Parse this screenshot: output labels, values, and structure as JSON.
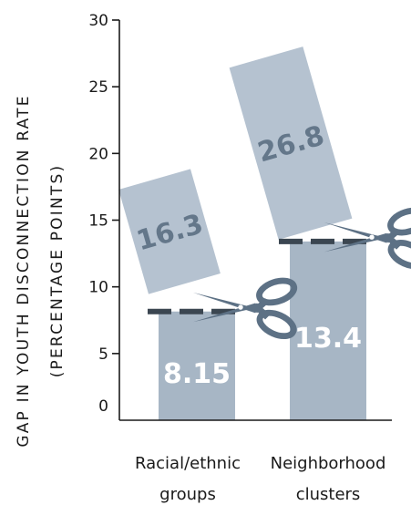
{
  "chart_data": {
    "type": "bar",
    "ylabel_line1": "GAP IN YOUTH DISCONNECTION RATE",
    "ylabel_line2": "(PERCENTAGE POINTS)",
    "ylim": [
      0,
      30
    ],
    "yticks": [
      0,
      5,
      10,
      15,
      20,
      25,
      30
    ],
    "categories": [
      {
        "line1": "Racial/ethnic",
        "line2": "groups"
      },
      {
        "line1": "Neighborhood",
        "line2": "clusters"
      }
    ],
    "values": [
      8.15,
      13.4
    ],
    "value_labels": [
      "8.15",
      "13.4"
    ],
    "cut_values": [
      16.3,
      26.8
    ],
    "cut_labels": [
      "16.3",
      "26.8"
    ],
    "colors": {
      "bar": "#a7b6c5",
      "cut_piece": "#b5c2d0",
      "cut_text": "#64778a",
      "dash": "#3b4651",
      "scissors": "#5d7185",
      "axis": "#1a1a1a"
    }
  }
}
